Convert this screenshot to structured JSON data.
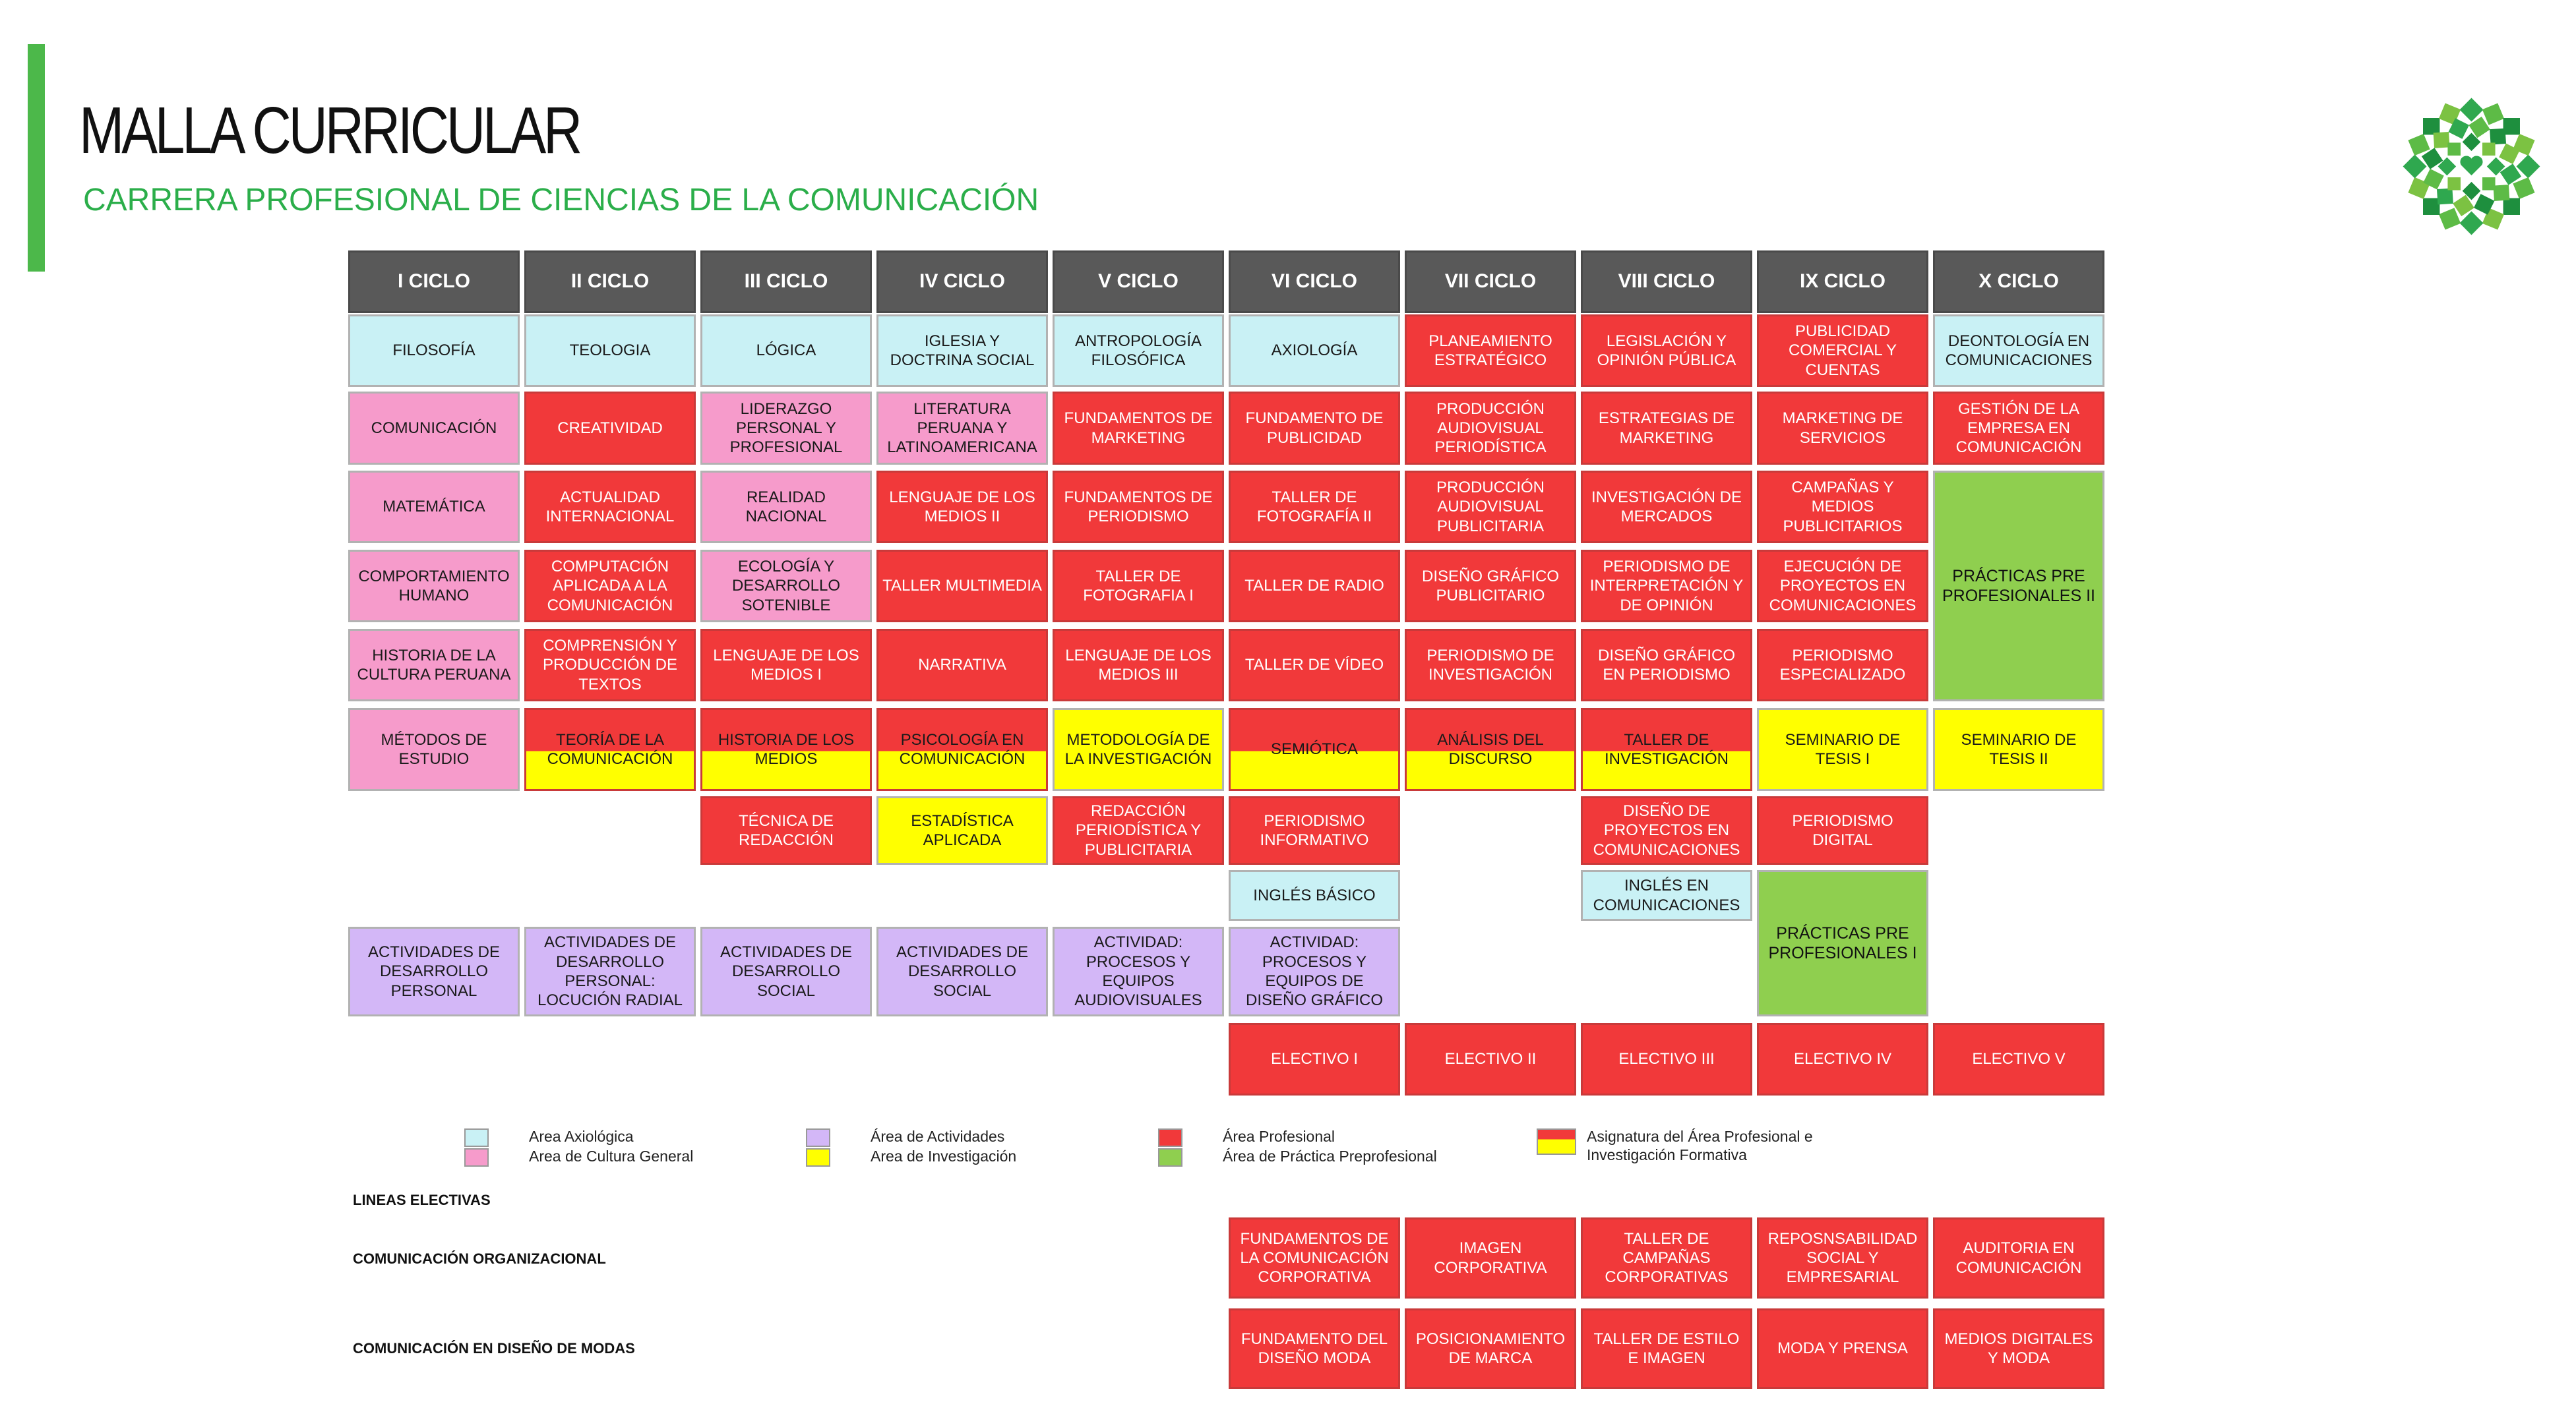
{
  "header": {
    "title": "MALLA CURRICULAR",
    "subtitle": "CARRERA PROFESIONAL DE CIENCIAS DE LA COMUNICACIÓN",
    "accent_color": "#4CB84A",
    "logo_icon": "green-squares-flower-logo-icon"
  },
  "cycles": [
    "I CICLO",
    "II CICLO",
    "III CICLO",
    "IV CICLO",
    "V CICLO",
    "VI CICLO",
    "VII CICLO",
    "VIII CICLO",
    "IX CICLO",
    "X CICLO"
  ],
  "courses": [
    {
      "text": "FILOSOFÍA",
      "area": "axi"
    },
    {
      "text": "TEOLOGIA",
      "area": "axi"
    },
    {
      "text": "LÓGICA",
      "area": "axi"
    },
    {
      "text": "IGLESIA Y DOCTRINA SOCIAL",
      "area": "axi"
    },
    {
      "text": "ANTROPOLOGÍA FILOSÓFICA",
      "area": "axi"
    },
    {
      "text": "AXIOLOGÍA",
      "area": "axi"
    },
    {
      "text": "PLANEAMIENTO ESTRATÉGICO",
      "area": "pro"
    },
    {
      "text": "LEGISLACIÓN Y OPINIÓN PÚBLICA",
      "area": "pro"
    },
    {
      "text": "PUBLICIDAD COMERCIAL Y CUENTAS",
      "area": "pro"
    },
    {
      "text": "DEONTOLOGÍA EN COMUNICACIONES",
      "area": "axi"
    },
    {
      "text": "COMUNICACIÓN",
      "area": "cul"
    },
    {
      "text": "CREATIVIDAD",
      "area": "pro"
    },
    {
      "text": "LIDERAZGO PERSONAL Y PROFESIONAL",
      "area": "cul"
    },
    {
      "text": "LITERATURA PERUANA Y LATINOAMERICANA",
      "area": "cul"
    },
    {
      "text": "FUNDAMENTOS DE MARKETING",
      "area": "pro"
    },
    {
      "text": "FUNDAMENTO DE PUBLICIDAD",
      "area": "pro"
    },
    {
      "text": "PRODUCCIÓN AUDIOVISUAL PERIODÍSTICA",
      "area": "pro"
    },
    {
      "text": "ESTRATEGIAS DE MARKETING",
      "area": "pro"
    },
    {
      "text": "MARKETING DE SERVICIOS",
      "area": "pro"
    },
    {
      "text": "GESTIÓN DE LA EMPRESA EN COMUNICACIÓN",
      "area": "pro"
    },
    {
      "text": "MATEMÁTICA",
      "area": "cul"
    },
    {
      "text": "ACTUALIDAD INTERNACIONAL",
      "area": "pro"
    },
    {
      "text": "REALIDAD NACIONAL",
      "area": "cul"
    },
    {
      "text": "LENGUAJE DE LOS MEDIOS II",
      "area": "pro"
    },
    {
      "text": "FUNDAMENTOS DE PERIODISMO",
      "area": "pro"
    },
    {
      "text": "TALLER DE FOTOGRAFÍA II",
      "area": "pro"
    },
    {
      "text": "PRODUCCIÓN AUDIOVISUAL PUBLICITARIA",
      "area": "pro"
    },
    {
      "text": "INVESTIGACIÓN DE MERCADOS",
      "area": "pro"
    },
    {
      "text": "CAMPAÑAS Y MEDIOS PUBLICITARIOS",
      "area": "pro"
    },
    {
      "text": "PRÁCTICAS PRE PROFESIONALES II",
      "area": "pra"
    },
    {
      "text": "COMPORTAMIENTO HUMANO",
      "area": "cul"
    },
    {
      "text": "COMPUTACIÓN APLICADA A LA COMUNICACIÓN",
      "area": "pro"
    },
    {
      "text": "ECOLOGÍA Y DESARROLLO SOTENIBLE",
      "area": "cul"
    },
    {
      "text": "TALLER MULTIMEDIA",
      "area": "pro"
    },
    {
      "text": "TALLER DE FOTOGRAFIA I",
      "area": "pro"
    },
    {
      "text": "TALLER DE RADIO",
      "area": "pro"
    },
    {
      "text": "DISEÑO GRÁFICO PUBLICITARIO",
      "area": "pro"
    },
    {
      "text": "PERIODISMO DE INTERPRETACIÓN Y DE OPINIÓN",
      "area": "pro"
    },
    {
      "text": "EJECUCIÓN DE PROYECTOS EN COMUNICACIONES",
      "area": "pro"
    },
    {
      "text": "HISTORIA DE LA CULTURA PERUANA",
      "area": "cul"
    },
    {
      "text": "COMPRENSIÓN Y PRODUCCIÓN DE TEXTOS",
      "area": "pro"
    },
    {
      "text": "LENGUAJE DE LOS MEDIOS I",
      "area": "pro"
    },
    {
      "text": "NARRATIVA",
      "area": "pro"
    },
    {
      "text": "LENGUAJE DE LOS MEDIOS III",
      "area": "pro"
    },
    {
      "text": "TALLER DE VÍDEO",
      "area": "pro"
    },
    {
      "text": "PERIODISMO DE INVESTIGACIÓN",
      "area": "pro"
    },
    {
      "text": "DISEÑO GRÁFICO EN PERIODISMO",
      "area": "pro"
    },
    {
      "text": "PERIODISMO ESPECIALIZADO",
      "area": "pro"
    },
    {
      "text": "MÉTODOS DE ESTUDIO",
      "area": "cul"
    },
    {
      "text": "TEORÍA DE LA COMUNICACIÓN",
      "area": "split"
    },
    {
      "text": "HISTORIA DE LOS MEDIOS",
      "area": "split"
    },
    {
      "text": "PSICOLOGÍA EN COMUNICACIÓN",
      "area": "split"
    },
    {
      "text": "METODOLOGÍA DE LA INVESTIGACIÓN",
      "area": "inv"
    },
    {
      "text": "SEMIÓTICA",
      "area": "split"
    },
    {
      "text": "ANÁLISIS DEL DISCURSO",
      "area": "split"
    },
    {
      "text": "TALLER DE INVESTIGACIÓN",
      "area": "split"
    },
    {
      "text": "SEMINARIO DE TESIS I",
      "area": "inv"
    },
    {
      "text": "SEMINARIO DE TESIS II",
      "area": "inv"
    },
    {
      "text": "TÉCNICA DE REDACCIÓN",
      "area": "pro"
    },
    {
      "text": "ESTADÍSTICA APLICADA",
      "area": "inv"
    },
    {
      "text": "REDACCIÓN PERIODÍSTICA Y PUBLICITARIA",
      "area": "pro"
    },
    {
      "text": "PERIODISMO INFORMATIVO",
      "area": "pro"
    },
    {
      "text": "DISEÑO DE PROYECTOS EN COMUNICACIONES",
      "area": "pro"
    },
    {
      "text": "PERIODISMO DIGITAL",
      "area": "pro"
    },
    {
      "text": "INGLÉS BÁSICO",
      "area": "axi"
    },
    {
      "text": "INGLÉS EN COMUNICACIONES",
      "area": "axi"
    },
    {
      "text": "ACTIVIDADES DE DESARROLLO PERSONAL",
      "area": "act"
    },
    {
      "text": "ACTIVIDADES DE DESARROLLO PERSONAL: LOCUCIÓN RADIAL",
      "area": "act"
    },
    {
      "text": "ACTIVIDADES DE DESARROLLO SOCIAL",
      "area": "act"
    },
    {
      "text": "ACTIVIDADES DE DESARROLLO SOCIAL",
      "area": "act"
    },
    {
      "text": "ACTIVIDAD: PROCESOS Y EQUIPOS AUDIOVISUALES",
      "area": "act"
    },
    {
      "text": "ACTIVIDAD: PROCESOS Y EQUIPOS DE DISEÑO GRÁFICO",
      "area": "act"
    },
    {
      "text": "PRÁCTICAS PRE PROFESIONALES I",
      "area": "pra"
    },
    {
      "text": "ELECTIVO I",
      "area": "pro"
    },
    {
      "text": "ELECTIVO II",
      "area": "pro"
    },
    {
      "text": "ELECTIVO III",
      "area": "pro"
    },
    {
      "text": "ELECTIVO IV",
      "area": "pro"
    },
    {
      "text": "ELECTIVO V",
      "area": "pro"
    }
  ],
  "legend": [
    {
      "label": "Area Axiológica",
      "color": "#C9F1F5"
    },
    {
      "label": "Area de Cultura General",
      "color": "#F69BCB"
    },
    {
      "label": "Área de Actividades",
      "color": "#D3B7F7"
    },
    {
      "label": "Area de Investigación",
      "color": "#FFFF00"
    },
    {
      "label": "Área Profesional",
      "color": "#F1393A"
    },
    {
      "label": "Área de Práctica Preprofesional",
      "color": "#8FCF4F"
    },
    {
      "label": "Asignatura del Área Profesional e Investigación Formativa",
      "color": "#F1393A/#FFFF00"
    }
  ],
  "electives": {
    "heading": "LINEAS ELECTIVAS",
    "lines": [
      {
        "name": "COMUNICACIÓN ORGANIZACIONAL",
        "courses": [
          "FUNDAMENTOS DE LA COMUNICACIÓN CORPORATIVA",
          "IMAGEN CORPORATIVA",
          "TALLER DE CAMPAÑAS CORPORATIVAS",
          "REPOSNSABILIDAD SOCIAL Y EMPRESARIAL",
          "AUDITORIA EN COMUNICACIÓN"
        ]
      },
      {
        "name": "COMUNICACIÓN EN DISEÑO DE MODAS",
        "courses": [
          "FUNDAMENTO DEL DISEÑO MODA",
          "POSICIONAMIENTO DE MARCA",
          "TALLER DE ESTILO E IMAGEN",
          "MODA Y PRENSA",
          "MEDIOS DIGITALES Y MODA"
        ]
      }
    ]
  }
}
